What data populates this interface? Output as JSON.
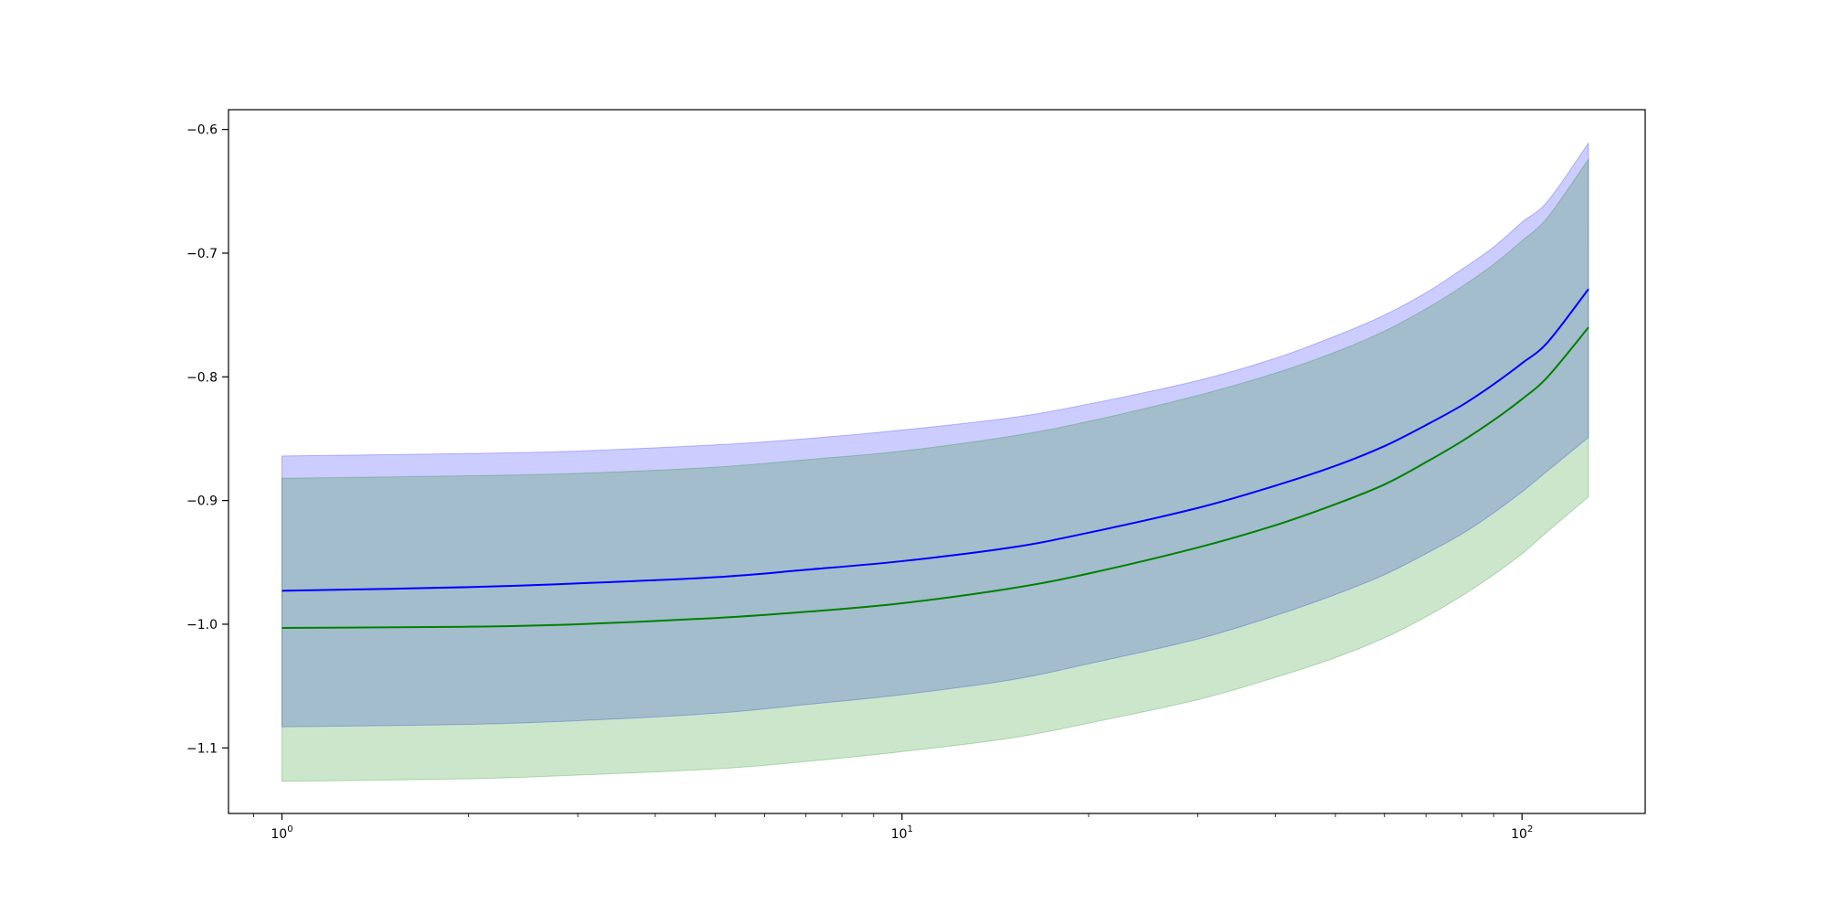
{
  "chart_data": {
    "type": "line",
    "title": "",
    "xlabel": "",
    "ylabel": "",
    "x_scale": "log",
    "xlim": [
      0.82,
      158
    ],
    "ylim": [
      -1.153,
      -0.584
    ],
    "grid": false,
    "x_ticks": [
      {
        "value": 1,
        "base": "10",
        "exp": "0"
      },
      {
        "value": 10,
        "base": "10",
        "exp": "1"
      },
      {
        "value": 100,
        "base": "10",
        "exp": "2"
      }
    ],
    "y_ticks": [
      {
        "value": -0.6,
        "label": "−0.6"
      },
      {
        "value": -0.7,
        "label": "−0.7"
      },
      {
        "value": -0.8,
        "label": "−0.8"
      },
      {
        "value": -0.9,
        "label": "−0.9"
      },
      {
        "value": -1.0,
        "label": "−1.0"
      },
      {
        "value": -1.1,
        "label": "−1.1"
      }
    ],
    "x": [
      1,
      2,
      3,
      5,
      7,
      10,
      15,
      20,
      30,
      40,
      50,
      60,
      70,
      80,
      90,
      100,
      110,
      128
    ],
    "series": [
      {
        "color": "#0000ff",
        "values": [
          -0.973,
          -0.97,
          -0.967,
          -0.962,
          -0.956,
          -0.949,
          -0.938,
          -0.926,
          -0.906,
          -0.888,
          -0.872,
          -0.856,
          -0.839,
          -0.823,
          -0.806,
          -0.789,
          -0.772,
          -0.729
        ],
        "band_upper": [
          -0.864,
          -0.862,
          -0.86,
          -0.855,
          -0.85,
          -0.843,
          -0.833,
          -0.822,
          -0.803,
          -0.785,
          -0.767,
          -0.75,
          -0.732,
          -0.713,
          -0.695,
          -0.675,
          -0.658,
          -0.611
        ],
        "band_lower": [
          -1.083,
          -1.081,
          -1.078,
          -1.072,
          -1.065,
          -1.057,
          -1.045,
          -1.032,
          -1.012,
          -0.993,
          -0.976,
          -0.96,
          -0.943,
          -0.927,
          -0.91,
          -0.893,
          -0.876,
          -0.849
        ],
        "band_color": "#0000ff",
        "band_opacity": 0.2
      },
      {
        "color": "#008000",
        "values": [
          -1.003,
          -1.002,
          -1.0,
          -0.995,
          -0.99,
          -0.983,
          -0.971,
          -0.959,
          -0.938,
          -0.92,
          -0.903,
          -0.887,
          -0.869,
          -0.852,
          -0.835,
          -0.818,
          -0.8,
          -0.76
        ],
        "band_upper": [
          -0.882,
          -0.88,
          -0.878,
          -0.873,
          -0.867,
          -0.86,
          -0.848,
          -0.836,
          -0.815,
          -0.797,
          -0.78,
          -0.763,
          -0.745,
          -0.727,
          -0.709,
          -0.69,
          -0.671,
          -0.624
        ],
        "band_lower": [
          -1.127,
          -1.125,
          -1.122,
          -1.117,
          -1.111,
          -1.103,
          -1.092,
          -1.08,
          -1.061,
          -1.043,
          -1.027,
          -1.011,
          -0.994,
          -0.977,
          -0.96,
          -0.943,
          -0.925,
          -0.897
        ],
        "band_color": "#008000",
        "band_opacity": 0.2
      }
    ]
  }
}
